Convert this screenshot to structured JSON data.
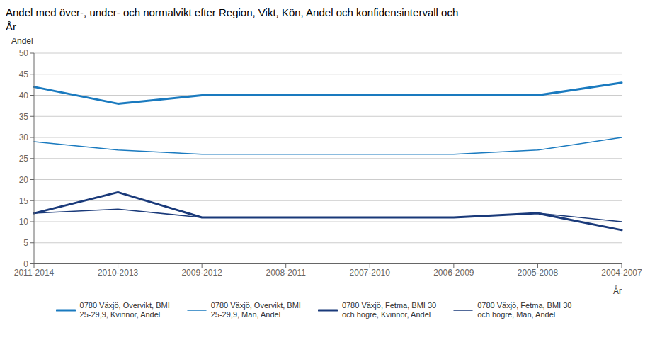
{
  "chart_data": {
    "type": "line",
    "title": "Andel med över-, under- och normalvikt efter Region, Vikt, Kön, Andel och konfidensintervall och\nÅr",
    "ylabel": "Andel",
    "xlabel": "År",
    "categories": [
      "2011-2014",
      "2010-2013",
      "2009-2012",
      "2008-2011",
      "2007-2010",
      "2006-2009",
      "2005-2008",
      "2004-2007"
    ],
    "series": [
      {
        "name": "0780 Växjö, Övervikt, BMI\n25-29,9, Kvinnor, Andel",
        "color": "#1a7abf",
        "values": [
          42,
          38,
          40,
          40,
          40,
          40,
          40,
          43
        ]
      },
      {
        "name": "0780 Växjö, Övervikt, BMI\n25-29,9, Män, Andel",
        "color": "#1a7abf",
        "values": [
          29,
          27,
          26,
          26,
          26,
          26,
          27,
          30
        ]
      },
      {
        "name": "0780 Växjö, Fetma, BMI 30\noch högre, Kvinnor, Andel",
        "color": "#1a3a7a",
        "values": [
          12,
          17,
          11,
          11,
          11,
          11,
          12,
          8
        ]
      },
      {
        "name": "0780 Växjö, Fetma, BMI 30\noch högre, Män, Andel",
        "color": "#1a3a7a",
        "values": [
          12,
          13,
          11,
          11,
          11,
          11,
          12,
          10
        ]
      }
    ],
    "ylim": [
      0,
      50
    ],
    "yticks": [
      0,
      5,
      10,
      15,
      20,
      25,
      30,
      35,
      40,
      45,
      50
    ],
    "grid": true,
    "legend": "bottom"
  }
}
